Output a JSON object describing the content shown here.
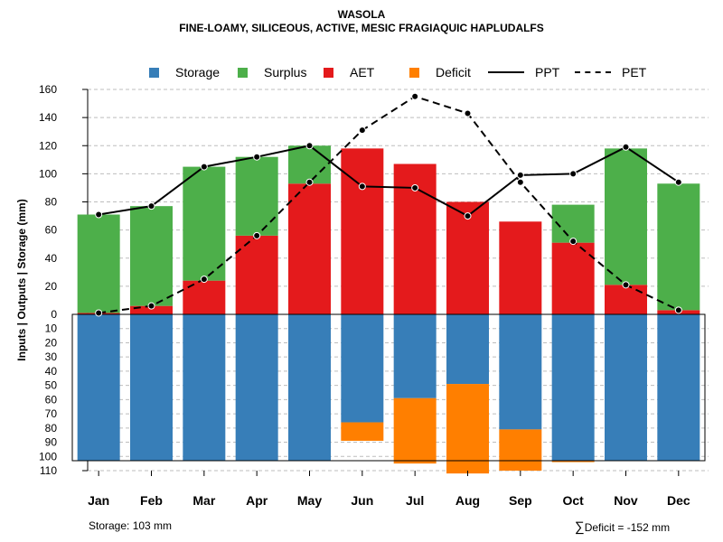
{
  "chart_data": {
    "type": "bar",
    "title": "WASOLA",
    "subtitle": "FINE-LOAMY, SILICEOUS, ACTIVE, MESIC FRAGIAQUIC HAPLUDALFS",
    "ylabel": "Inputs | Outputs | Storage    (mm)",
    "categories": [
      "Jan",
      "Feb",
      "Mar",
      "Apr",
      "May",
      "Jun",
      "Jul",
      "Aug",
      "Sep",
      "Oct",
      "Nov",
      "Dec"
    ],
    "ylim_upper": [
      0,
      160
    ],
    "ylim_lower": [
      0,
      110
    ],
    "upper_ticks": [
      "0",
      "20",
      "40",
      "60",
      "80",
      "100",
      "120",
      "140",
      "160"
    ],
    "lower_ticks": [
      "10",
      "20",
      "30",
      "40",
      "50",
      "60",
      "70",
      "80",
      "90",
      "100",
      "110"
    ],
    "legend": [
      "Storage",
      "Surplus",
      "AET",
      "Deficit",
      "PPT",
      "PET"
    ],
    "colors": {
      "storage": "#377EB8",
      "surplus": "#4DAF4A",
      "aet": "#E41A1C",
      "deficit": "#FF7F00",
      "line": "#000000"
    },
    "series": [
      {
        "name": "AET",
        "values": [
          1,
          6,
          24,
          56,
          93,
          118,
          107,
          80,
          66,
          51,
          21,
          3
        ]
      },
      {
        "name": "Surplus",
        "values": [
          70,
          71,
          81,
          56,
          27,
          0,
          0,
          0,
          0,
          27,
          97,
          90
        ]
      },
      {
        "name": "PPT",
        "values": [
          71,
          77,
          105,
          112,
          120,
          91,
          90,
          70,
          99,
          100,
          119,
          94
        ]
      },
      {
        "name": "PET",
        "values": [
          1,
          6,
          25,
          56,
          94,
          131,
          155,
          143,
          94,
          52,
          21,
          3
        ]
      },
      {
        "name": "Storage",
        "values": [
          103,
          103,
          103,
          103,
          103,
          76,
          59,
          49,
          81,
          103,
          103,
          103
        ]
      },
      {
        "name": "Deficit",
        "values": [
          0,
          0,
          0,
          0,
          0,
          13,
          46,
          63,
          29,
          1,
          0,
          0
        ]
      }
    ],
    "storage_capacity": 103
  },
  "footer": {
    "storage_label": "Storage: 103 mm",
    "deficit_label": "Deficit = -152 mm",
    "sum_symbol": "∑"
  }
}
